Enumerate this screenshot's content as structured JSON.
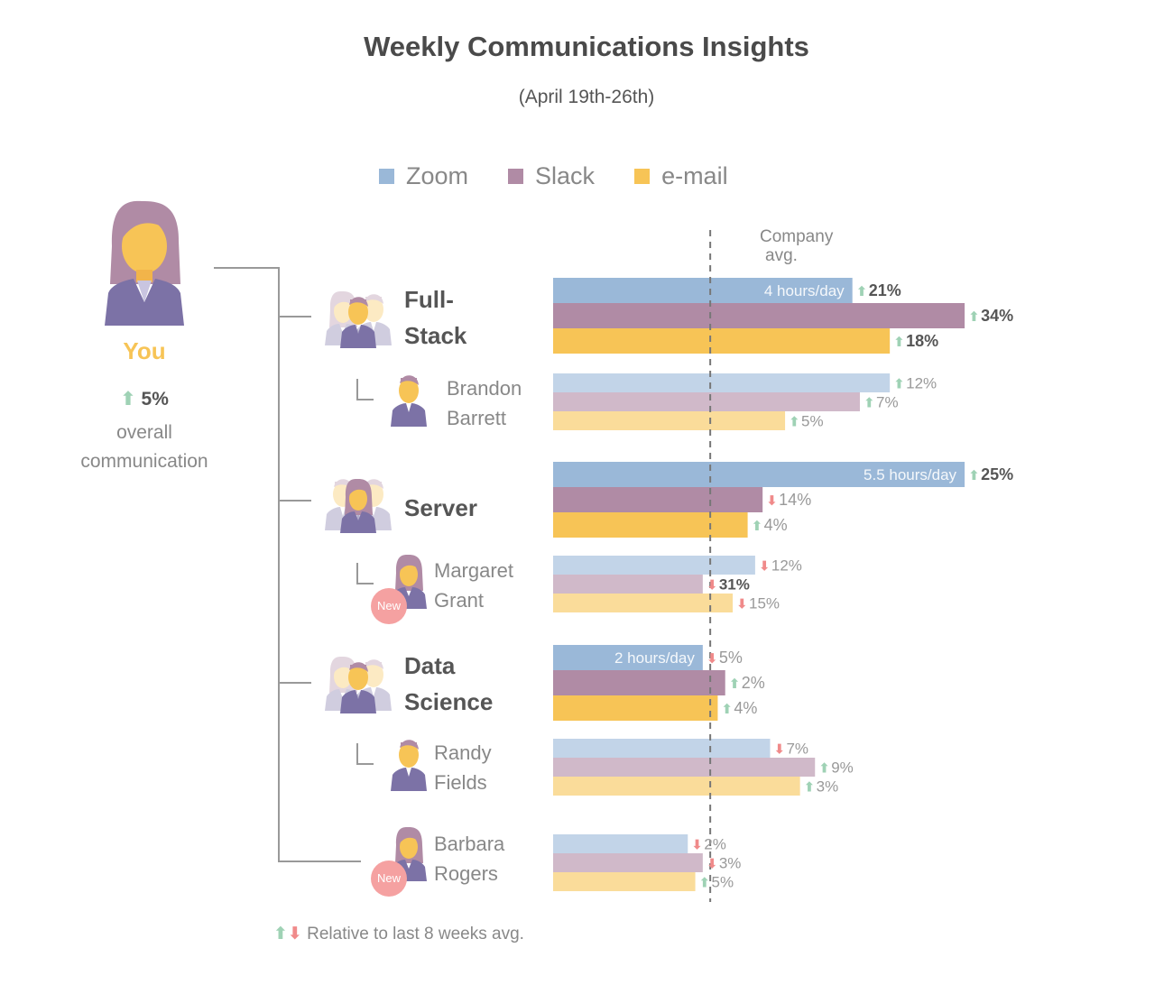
{
  "title": "Weekly Communications Insights",
  "subtitle": "(April 19th-26th)",
  "legend": [
    {
      "label": "Zoom",
      "color": "#9ab8d8"
    },
    {
      "label": "Slack",
      "color": "#b08ba5"
    },
    {
      "label": "e-mail",
      "color": "#f7c456"
    }
  ],
  "you": {
    "label": "You",
    "change": "5%",
    "direction": "up",
    "desc_line1": "overall",
    "desc_line2": "communication"
  },
  "company_avg": {
    "line1": "Company",
    "line2": "avg."
  },
  "footnote": "Relative to last 8 weeks avg.",
  "new_badge": "New",
  "chart_data": {
    "type": "bar",
    "orientation": "horizontal",
    "series_names": [
      "Zoom",
      "Slack",
      "e-mail"
    ],
    "company_avg": 2.1,
    "axis_max": 6.5,
    "groups": [
      {
        "name_line1": "Full-",
        "name_line2": "Stack",
        "kind": "team",
        "bars": [
          {
            "series": "Zoom",
            "value": 4,
            "bar_label": "4 hours/day",
            "change": "21%",
            "direction": "up",
            "bold": true
          },
          {
            "series": "Slack",
            "value": 5.5,
            "change": "34%",
            "direction": "up",
            "bold": true
          },
          {
            "series": "e-mail",
            "value": 4.5,
            "change": "18%",
            "direction": "up",
            "bold": true
          }
        ]
      },
      {
        "name_line1": "Brandon",
        "name_line2": "Barrett",
        "kind": "member",
        "bars": [
          {
            "series": "Zoom",
            "value": 4.5,
            "change": "12%",
            "direction": "up",
            "bold": false
          },
          {
            "series": "Slack",
            "value": 4.1,
            "change": "7%",
            "direction": "up",
            "bold": false
          },
          {
            "series": "e-mail",
            "value": 3.1,
            "change": "5%",
            "direction": "up",
            "bold": false
          }
        ]
      },
      {
        "name_line1": "Server",
        "name_line2": "",
        "kind": "team",
        "bars": [
          {
            "series": "Zoom",
            "value": 5.5,
            "bar_label": "5.5 hours/day",
            "change": "25%",
            "direction": "up",
            "bold": true
          },
          {
            "series": "Slack",
            "value": 2.8,
            "change": "14%",
            "direction": "down",
            "bold": false
          },
          {
            "series": "e-mail",
            "value": 2.6,
            "change": "4%",
            "direction": "up",
            "bold": false
          }
        ]
      },
      {
        "name_line1": "Margaret",
        "name_line2": "Grant",
        "kind": "member",
        "new": true,
        "bars": [
          {
            "series": "Zoom",
            "value": 2.7,
            "change": "12%",
            "direction": "down",
            "bold": false
          },
          {
            "series": "Slack",
            "value": 2.0,
            "change": "31%",
            "direction": "down",
            "bold": true
          },
          {
            "series": "e-mail",
            "value": 2.4,
            "change": "15%",
            "direction": "down",
            "bold": false
          }
        ]
      },
      {
        "name_line1": "Data",
        "name_line2": "Science",
        "kind": "team",
        "bars": [
          {
            "series": "Zoom",
            "value": 2,
            "bar_label": "2 hours/day",
            "change": "5%",
            "direction": "down",
            "bold": false
          },
          {
            "series": "Slack",
            "value": 2.3,
            "change": "2%",
            "direction": "up",
            "bold": false
          },
          {
            "series": "e-mail",
            "value": 2.2,
            "change": "4%",
            "direction": "up",
            "bold": false
          }
        ]
      },
      {
        "name_line1": "Randy",
        "name_line2": "Fields",
        "kind": "member",
        "bars": [
          {
            "series": "Zoom",
            "value": 2.9,
            "change": "7%",
            "direction": "down",
            "bold": false
          },
          {
            "series": "Slack",
            "value": 3.5,
            "change": "9%",
            "direction": "up",
            "bold": false
          },
          {
            "series": "e-mail",
            "value": 3.3,
            "change": "3%",
            "direction": "up",
            "bold": false
          }
        ]
      },
      {
        "name_line1": "Barbara",
        "name_line2": "Rogers",
        "kind": "member",
        "new": true,
        "bars": [
          {
            "series": "Zoom",
            "value": 1.8,
            "change": "2%",
            "direction": "down",
            "bold": false
          },
          {
            "series": "Slack",
            "value": 2.0,
            "change": "3%",
            "direction": "down",
            "bold": false
          },
          {
            "series": "e-mail",
            "value": 1.9,
            "change": "5%",
            "direction": "up",
            "bold": false
          }
        ]
      }
    ]
  }
}
